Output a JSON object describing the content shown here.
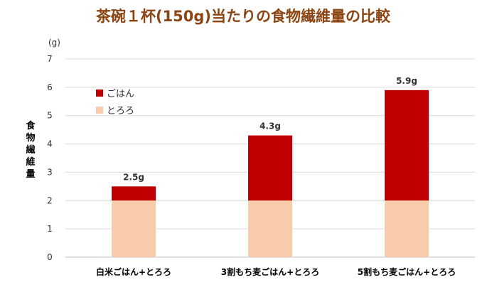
{
  "chart_data": {
    "type": "bar",
    "stacked": true,
    "title": "茶碗１杯(150g)当たりの食物繊維量の比較",
    "unit_label": "(g)",
    "ylabel": "食物繊維量",
    "xlabel": "",
    "ylim": [
      0,
      7
    ],
    "yticks": [
      0,
      1,
      2,
      3,
      4,
      5,
      6,
      7
    ],
    "grid": true,
    "legend_position": "upper-left",
    "categories": [
      "白米ごはん+とろろ",
      "3割もち麦ごはん+とろろ",
      "5割もち麦ごはん+とろろ"
    ],
    "series": [
      {
        "name": "とろろ",
        "values": [
          2.0,
          2.0,
          2.0
        ],
        "color": "#F8CBAD"
      },
      {
        "name": "ごはん",
        "values": [
          0.5,
          2.3,
          3.9
        ],
        "color": "#C00000"
      }
    ],
    "totals": [
      2.5,
      4.3,
      5.9
    ],
    "total_labels": [
      "2.5g",
      "4.3g",
      "5.9g"
    ]
  }
}
